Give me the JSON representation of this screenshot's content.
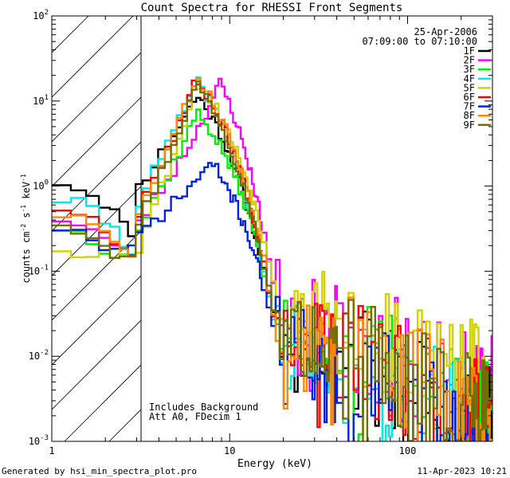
{
  "chart_data": {
    "type": "line",
    "title": "Count Spectra for RHESSI Front Segments",
    "xlabel": "Energy (keV)",
    "ylabel_parts": [
      "counts cm",
      "-2",
      " s",
      "-1",
      " keV",
      "-1"
    ],
    "xscale": "log",
    "yscale": "log",
    "xlim": [
      1,
      300
    ],
    "ylim": [
      0.001,
      100
    ],
    "x_ticks": [
      {
        "value": 1,
        "label": "1"
      },
      {
        "value": 10,
        "label": "10"
      },
      {
        "value": 100,
        "label": "100"
      }
    ],
    "y_ticks": [
      {
        "value": 0.001,
        "base": "10",
        "exp": "-3"
      },
      {
        "value": 0.01,
        "base": "10",
        "exp": "-2"
      },
      {
        "value": 0.1,
        "base": "10",
        "exp": "-1"
      },
      {
        "value": 1,
        "base": "10",
        "exp": "0"
      },
      {
        "value": 10,
        "base": "10",
        "exp": "1"
      },
      {
        "value": 100,
        "base": "10",
        "exp": "2"
      }
    ],
    "attenuator_region": {
      "x_max": 3,
      "pattern": "diagonal hatch"
    },
    "date_label": "25-Apr-2006",
    "time_label": "07:09:00 to 07:10:00",
    "notes": [
      "Includes Background",
      "Att A0, FDecim 1"
    ],
    "series": [
      {
        "name": "1F",
        "color": "#000000",
        "peak": 11.5,
        "low": 1.2,
        "shift": 1.0,
        "bg": 1.0,
        "seed": 11
      },
      {
        "name": "2F",
        "color": "#ff00ff",
        "peak": 16.0,
        "low": 0.45,
        "shift": 1.35,
        "bg": 2.4,
        "seed": 23
      },
      {
        "name": "3F",
        "color": "#00ee00",
        "peak": 7.2,
        "low": 0.35,
        "shift": 1.0,
        "bg": 1.3,
        "seed": 37
      },
      {
        "name": "4F",
        "color": "#00e8e8",
        "peak": 17.0,
        "low": 0.75,
        "shift": 1.0,
        "bg": 0.9,
        "seed": 41
      },
      {
        "name": "5F",
        "color": "#d2d200",
        "peak": 16.5,
        "low": 0.2,
        "shift": 1.0,
        "bg": 3.0,
        "seed": 53
      },
      {
        "name": "6F",
        "color": "#ff0000",
        "peak": 17.5,
        "low": 0.6,
        "shift": 1.0,
        "bg": 1.2,
        "seed": 67
      },
      {
        "name": "7F",
        "color": "#0022dd",
        "peak": 1.85,
        "low": 0.35,
        "shift": 1.2,
        "bg": 0.9,
        "seed": 71
      },
      {
        "name": "8F",
        "color": "#ff8800",
        "peak": 18.5,
        "low": 0.5,
        "shift": 1.0,
        "bg": 1.3,
        "seed": 83
      },
      {
        "name": "9F",
        "color": "#707000",
        "peak": 16.0,
        "low": 0.4,
        "shift": 1.0,
        "bg": 1.1,
        "seed": 97
      }
    ]
  },
  "footer": {
    "left": "Generated by hsi_min_spectra_plot.pro",
    "right": "11-Apr-2023 10:21"
  }
}
